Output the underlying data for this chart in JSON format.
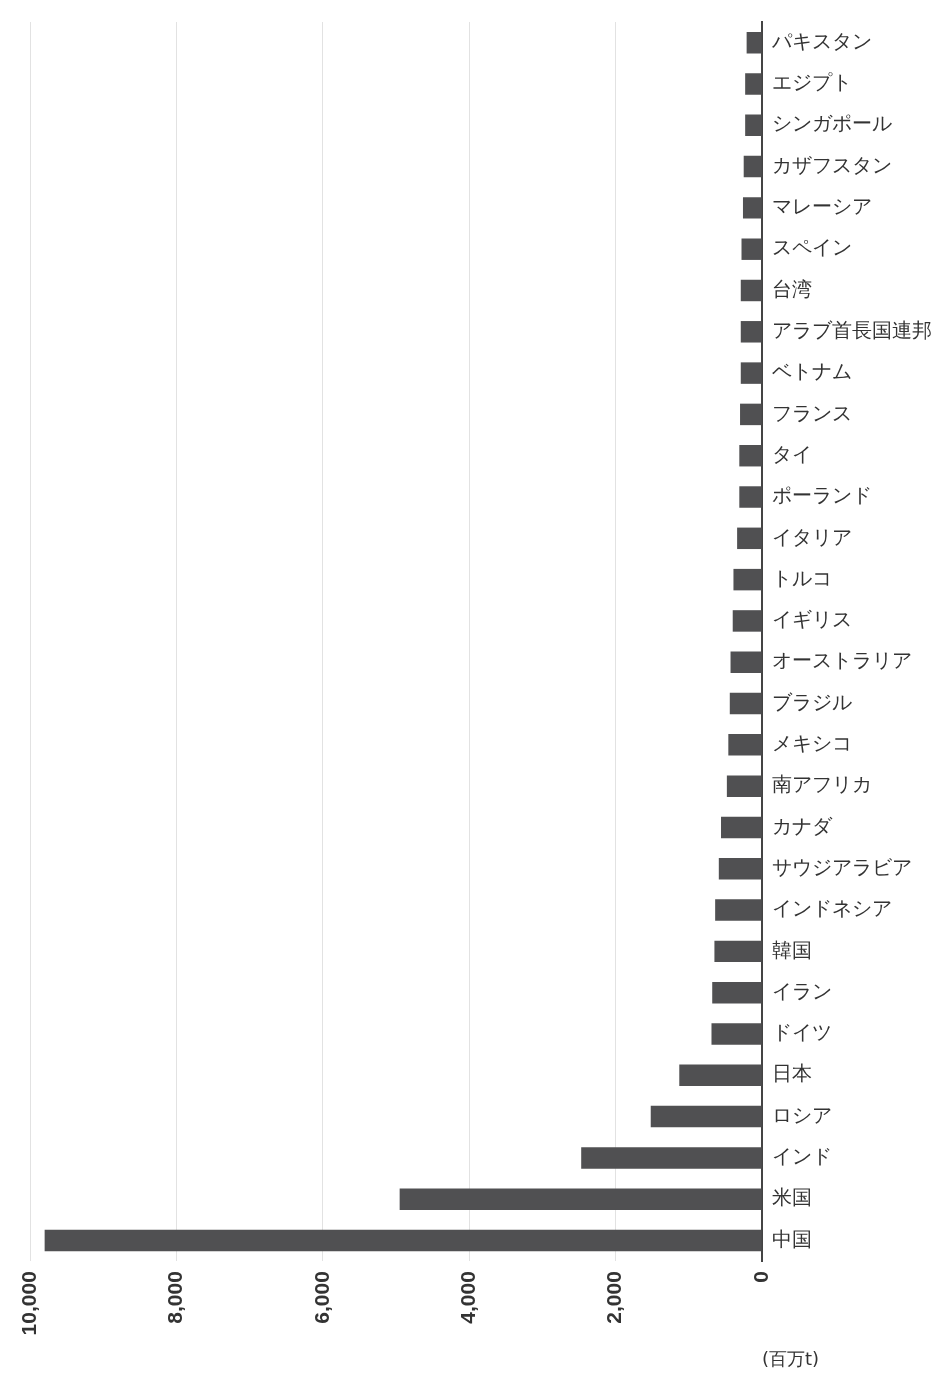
{
  "chart_data": {
    "type": "bar",
    "orientation": "horizontal",
    "xlabel": "(百万t)",
    "categories": [
      "パキスタン",
      "エジプト",
      "シンガポール",
      "カザフスタン",
      "マレーシア",
      "スペイン",
      "台湾",
      "アラブ首長国連邦",
      "ベトナム",
      "フランス",
      "タイ",
      "ポーランド",
      "イタリア",
      "トルコ",
      "イギリス",
      "オーストラリア",
      "ブラジル",
      "メキシコ",
      "南アフリカ",
      "カナダ",
      "サウジアラビア",
      "インドネシア",
      "韓国",
      "イラン",
      "ドイツ",
      "日本",
      "ロシア",
      "インド",
      "米国",
      "中国"
    ],
    "values": [
      210,
      230,
      230,
      250,
      260,
      280,
      290,
      290,
      290,
      300,
      310,
      310,
      340,
      390,
      400,
      430,
      440,
      460,
      480,
      560,
      590,
      640,
      650,
      680,
      690,
      1130,
      1520,
      2470,
      4950,
      9800
    ],
    "color": "#505052",
    "xlim": [
      10000,
      0
    ],
    "xticks": [
      {
        "value": 10000,
        "label": "10,000"
      },
      {
        "value": 8000,
        "label": "8,000"
      },
      {
        "value": 6000,
        "label": "6,000"
      },
      {
        "value": 4000,
        "label": "4,000"
      },
      {
        "value": 2000,
        "label": "2,000"
      },
      0
    ],
    "grid": "x"
  }
}
